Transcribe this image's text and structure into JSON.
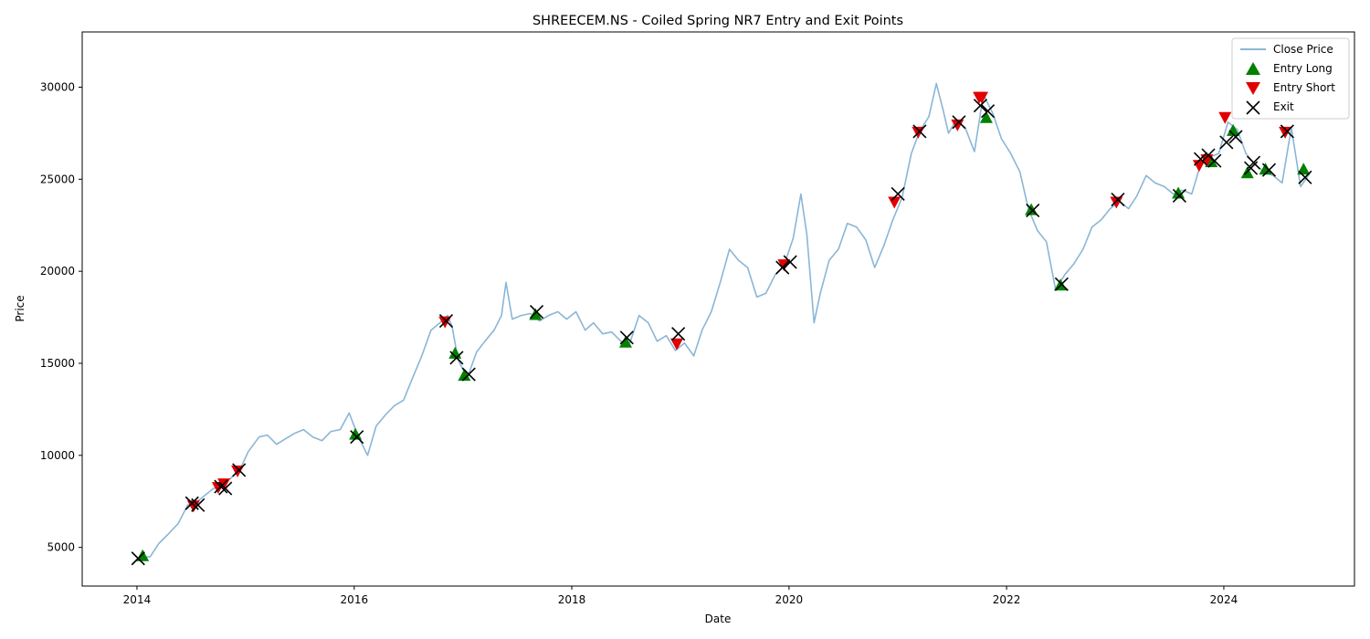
{
  "chart_data": {
    "type": "line",
    "title": "SHREECEM.NS - Coiled Spring NR7 Entry and Exit Points",
    "xlabel": "Date",
    "ylabel": "Price",
    "xlim": [
      "2013-07-01",
      "2025-03-15"
    ],
    "ylim": [
      2900,
      33000
    ],
    "x_ticks": [
      "2014",
      "2016",
      "2018",
      "2020",
      "2022",
      "2024"
    ],
    "y_ticks": [
      5000,
      10000,
      15000,
      20000,
      25000,
      30000
    ],
    "grid": false,
    "legend_position": "top-right",
    "colors": {
      "close": "#8ab6d6",
      "entry_long": "#008000",
      "entry_short": "#e00000",
      "exit": "#000000"
    },
    "series": [
      {
        "name": "Close Price",
        "x": [
          "2014-01-01",
          "2014-02-15",
          "2014-03-15",
          "2014-04-15",
          "2014-05-20",
          "2014-06-20",
          "2014-07-15",
          "2014-08-15",
          "2014-09-15",
          "2014-10-15",
          "2014-11-15",
          "2014-12-15",
          "2015-01-10",
          "2015-02-15",
          "2015-03-15",
          "2015-04-15",
          "2015-05-15",
          "2015-06-15",
          "2015-07-15",
          "2015-08-15",
          "2015-09-15",
          "2015-10-15",
          "2015-11-15",
          "2015-12-15",
          "2016-01-15",
          "2016-02-15",
          "2016-03-15",
          "2016-04-15",
          "2016-05-15",
          "2016-06-15",
          "2016-07-15",
          "2016-08-15",
          "2016-09-15",
          "2016-10-15",
          "2016-11-10",
          "2016-11-25",
          "2016-12-15",
          "2017-01-15",
          "2017-02-15",
          "2017-03-15",
          "2017-04-15",
          "2017-05-10",
          "2017-05-25",
          "2017-06-15",
          "2017-07-15",
          "2017-08-15",
          "2017-09-15",
          "2017-10-15",
          "2017-11-15",
          "2017-12-15",
          "2018-01-15",
          "2018-02-15",
          "2018-03-15",
          "2018-04-15",
          "2018-05-15",
          "2018-06-15",
          "2018-07-15",
          "2018-08-15",
          "2018-09-15",
          "2018-10-15",
          "2018-11-15",
          "2018-12-15",
          "2019-01-15",
          "2019-02-15",
          "2019-03-15",
          "2019-04-15",
          "2019-05-15",
          "2019-06-15",
          "2019-07-15",
          "2019-08-15",
          "2019-09-15",
          "2019-10-15",
          "2019-11-15",
          "2019-12-15",
          "2020-01-15",
          "2020-02-10",
          "2020-03-01",
          "2020-03-25",
          "2020-04-15",
          "2020-05-15",
          "2020-06-15",
          "2020-07-15",
          "2020-08-15",
          "2020-09-15",
          "2020-10-15",
          "2020-11-15",
          "2020-12-15",
          "2021-01-15",
          "2021-02-15",
          "2021-03-15",
          "2021-04-15",
          "2021-05-10",
          "2021-06-01",
          "2021-06-20",
          "2021-07-15",
          "2021-08-15",
          "2021-09-15",
          "2021-10-15",
          "2021-11-15",
          "2021-12-15",
          "2022-01-15",
          "2022-02-15",
          "2022-03-15",
          "2022-04-15",
          "2022-05-15",
          "2022-06-15",
          "2022-07-15",
          "2022-08-15",
          "2022-09-15",
          "2022-10-15",
          "2022-11-15",
          "2022-12-15",
          "2023-01-15",
          "2023-02-15",
          "2023-03-15",
          "2023-04-15",
          "2023-05-15",
          "2023-06-15",
          "2023-07-15",
          "2023-08-15",
          "2023-09-15",
          "2023-10-15",
          "2023-11-15",
          "2023-12-15",
          "2024-01-15",
          "2024-02-15",
          "2024-03-15",
          "2024-04-15",
          "2024-05-15",
          "2024-06-15",
          "2024-07-15",
          "2024-08-15",
          "2024-09-15",
          "2024-10-15"
        ],
        "y": [
          4400,
          4500,
          5200,
          5700,
          6300,
          7300,
          7400,
          7800,
          8200,
          8400,
          8800,
          9300,
          10200,
          11000,
          11100,
          10600,
          10900,
          11200,
          11400,
          11000,
          10800,
          11300,
          11400,
          12300,
          11000,
          10000,
          11600,
          12200,
          12700,
          13000,
          14200,
          15400,
          16800,
          17200,
          17600,
          17000,
          15200,
          14200,
          15600,
          16200,
          16800,
          17600,
          19400,
          17400,
          17600,
          17700,
          17300,
          17600,
          17800,
          17400,
          17800,
          16800,
          17200,
          16600,
          16700,
          16200,
          16100,
          17600,
          17200,
          16200,
          16500,
          15700,
          16100,
          15400,
          16800,
          17800,
          19400,
          21200,
          20600,
          20200,
          18600,
          18800,
          19800,
          20300,
          21800,
          24200,
          22000,
          17200,
          18800,
          20600,
          21200,
          22600,
          22400,
          21700,
          20200,
          21400,
          22800,
          24000,
          26400,
          27600,
          28400,
          30200,
          28800,
          27500,
          28200,
          27800,
          26500,
          29600,
          28600,
          27200,
          26400,
          25400,
          23400,
          22200,
          21600,
          19000,
          19800,
          20400,
          21200,
          22400,
          22800,
          23400,
          23800,
          23400,
          24100,
          25200,
          24800,
          24600,
          24200,
          24400,
          24200,
          25800,
          26200,
          26400,
          28100,
          27700,
          26400,
          25800,
          25400,
          25200,
          24800,
          27800,
          24600,
          25300
        ]
      }
    ],
    "entry_long": {
      "name": "Entry Long",
      "x": [
        "2014-01-20",
        "2016-01-05",
        "2016-12-05",
        "2017-01-05",
        "2017-09-01",
        "2018-07-01",
        "2021-10-25",
        "2022-03-25",
        "2022-07-01",
        "2023-08-01",
        "2023-11-20",
        "2024-02-01",
        "2024-03-20",
        "2024-05-20",
        "2024-09-25"
      ],
      "y": [
        4500,
        11100,
        15500,
        14300,
        17600,
        16100,
        28300,
        23300,
        19200,
        24200,
        25900,
        27600,
        25300,
        25500,
        25500
      ]
    },
    "entry_short": {
      "name": "Entry Short",
      "x": [
        "2014-07-10",
        "2014-10-01",
        "2014-10-20",
        "2014-12-05",
        "2016-11-01",
        "2018-12-20",
        "2019-12-15",
        "2020-12-20",
        "2021-03-10",
        "2021-07-20",
        "2021-10-01",
        "2021-10-10",
        "2023-01-05",
        "2023-10-10",
        "2023-11-05",
        "2024-01-05",
        "2024-07-25"
      ],
      "y": [
        7300,
        8300,
        8500,
        9200,
        17300,
        16100,
        20400,
        23800,
        27600,
        28000,
        29500,
        29500,
        23800,
        25800,
        26100,
        28400,
        27600
      ]
    },
    "exit": {
      "name": "Exit",
      "x": [
        "2014-01-05",
        "2014-07-05",
        "2014-07-25",
        "2014-10-10",
        "2014-10-25",
        "2014-12-10",
        "2016-01-10",
        "2016-11-05",
        "2016-12-10",
        "2017-01-20",
        "2017-09-05",
        "2018-07-05",
        "2018-12-25",
        "2019-12-10",
        "2020-01-05",
        "2021-01-01",
        "2021-03-15",
        "2021-07-25",
        "2021-10-05",
        "2021-10-30",
        "2022-03-30",
        "2022-07-05",
        "2023-01-10",
        "2023-08-05",
        "2023-10-15",
        "2023-11-10",
        "2023-12-01",
        "2024-01-10",
        "2024-02-10",
        "2024-04-01",
        "2024-04-10",
        "2024-06-01",
        "2024-08-01",
        "2024-09-30"
      ],
      "y": [
        4400,
        7400,
        7300,
        8300,
        8200,
        9200,
        11000,
        17300,
        15300,
        14400,
        17800,
        16400,
        16600,
        20200,
        20500,
        24200,
        27600,
        28100,
        29000,
        28700,
        23300,
        19300,
        23900,
        24100,
        26100,
        26300,
        26000,
        27000,
        27300,
        25600,
        25900,
        25500,
        27600,
        25100
      ]
    }
  },
  "legend": {
    "close_label": "Close Price",
    "long_label": "Entry Long",
    "short_label": "Entry Short",
    "exit_label": "Exit"
  }
}
